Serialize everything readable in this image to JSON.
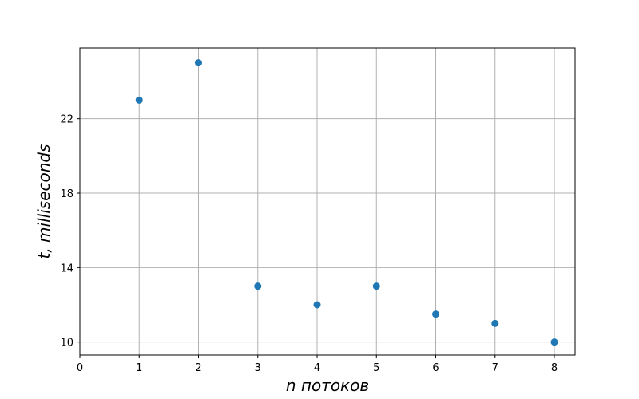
{
  "chart_data": {
    "type": "scatter",
    "xlabel": "n потоков",
    "ylabel": "t, milliseconds",
    "xlim": [
      0,
      8.35
    ],
    "ylim": [
      9.3,
      25.8
    ],
    "xticks": [
      0,
      1,
      2,
      3,
      4,
      5,
      6,
      7,
      8
    ],
    "yticks": [
      10,
      14,
      18,
      22
    ],
    "grid": true,
    "marker_color": "#1f77b4",
    "series": [
      {
        "x": [
          1,
          2,
          3,
          4,
          5,
          6,
          7,
          8
        ],
        "y": [
          23,
          25,
          13,
          12,
          13,
          11.5,
          11,
          10
        ]
      }
    ]
  }
}
